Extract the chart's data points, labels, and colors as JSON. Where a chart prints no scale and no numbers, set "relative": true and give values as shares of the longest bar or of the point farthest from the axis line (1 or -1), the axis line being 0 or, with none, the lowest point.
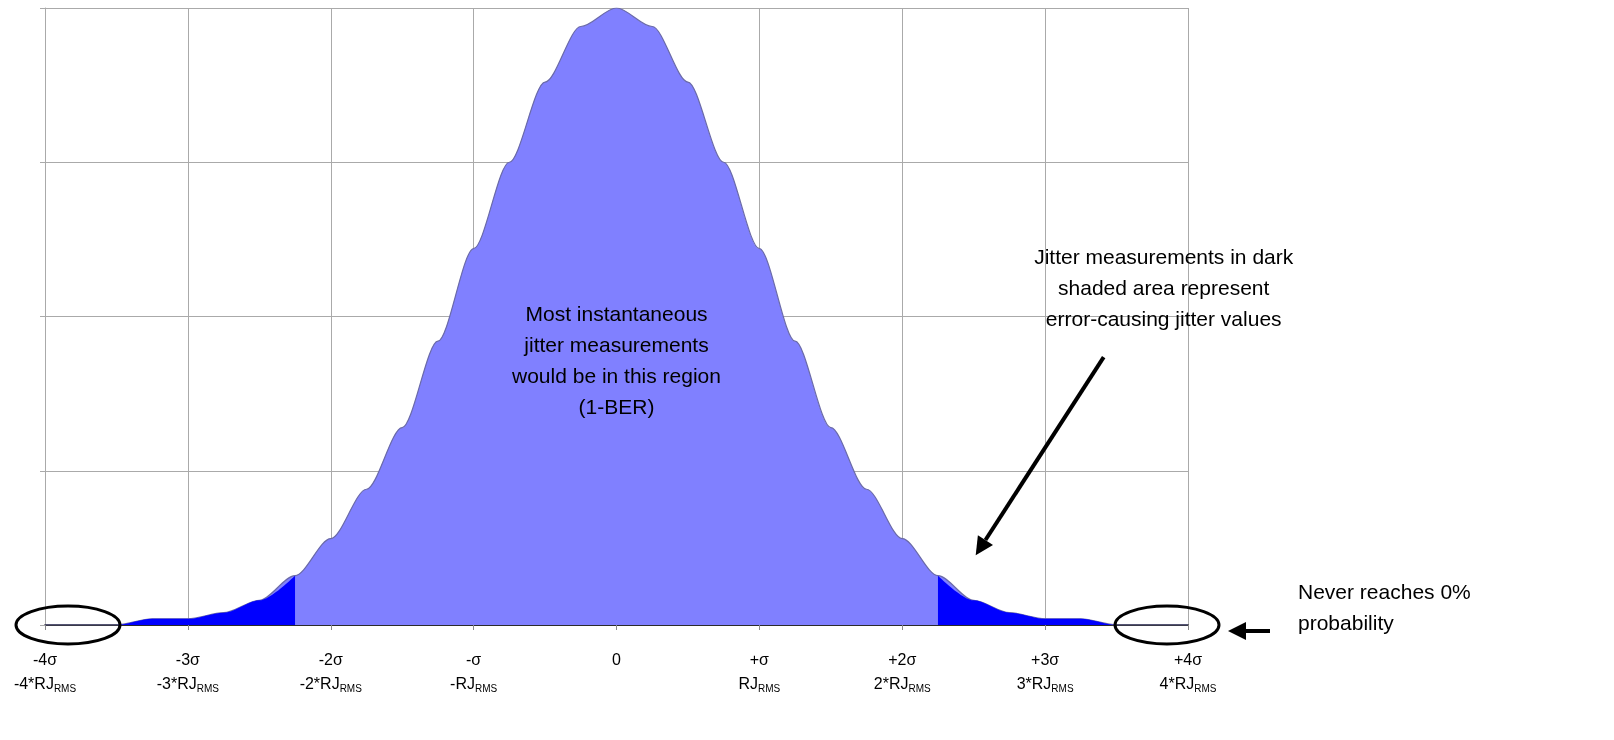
{
  "chart_data": {
    "type": "area",
    "relative": true,
    "categories": [
      "-4σ\n-4*RJ$_{RMS}$",
      null,
      null,
      null,
      "-3σ\n-3*RJ$_{RMS}$",
      null,
      null,
      null,
      "-2σ\n-2*RJ$_{RMS}$",
      null,
      null,
      null,
      "-σ\n-RJ$_{RMS}$",
      null,
      null,
      null,
      "0",
      null,
      null,
      null,
      "+σ\nRJ$_{RMS}$",
      null,
      null,
      null,
      "+2σ\n2*RJ$_{RMS}$",
      null,
      null,
      null,
      "+3σ\n3*RJ$_{RMS}$",
      null,
      null,
      null,
      "+4σ\n4*RJ$_{RMS}$"
    ],
    "series": [
      {
        "color": "#8080ff",
        "values": [
          0,
          0,
          0,
          0.01,
          0.01,
          0.02,
          0.04,
          0.08,
          0.14,
          0.22,
          0.32,
          0.46,
          0.61,
          0.75,
          0.88,
          0.97,
          1,
          0.97,
          0.88,
          0.75,
          0.61,
          0.46,
          0.32,
          0.22,
          0.14,
          0.08,
          0.04,
          0.02,
          0.01,
          0.01,
          0,
          0,
          0
        ]
      },
      {
        "color": "#0000ff",
        "values": [
          0,
          0,
          0,
          0.01,
          0.01,
          0.02,
          0.04,
          0.08,
          null,
          null,
          null,
          null,
          null,
          null,
          null,
          null,
          null,
          null,
          null,
          null,
          null,
          null,
          null,
          null,
          null,
          null,
          null,
          null,
          null,
          null,
          null,
          null,
          null
        ]
      },
      {
        "color": "#0000ff",
        "values": [
          null,
          null,
          null,
          null,
          null,
          null,
          null,
          null,
          null,
          null,
          null,
          null,
          null,
          null,
          null,
          null,
          null,
          null,
          null,
          null,
          null,
          null,
          null,
          null,
          null,
          0.08,
          0.04,
          0.02,
          0.01,
          0.01,
          0,
          0,
          0
        ]
      }
    ],
    "grid": true,
    "marker": "none",
    "annotations": [
      "Most instantaneous\njitter measurements\nwould be in this region\n(1-BER)",
      "Jitter measurements in dark\nshaded area represent\nerror-causing jitter values",
      "Never reaches 0%\nprobability"
    ]
  }
}
